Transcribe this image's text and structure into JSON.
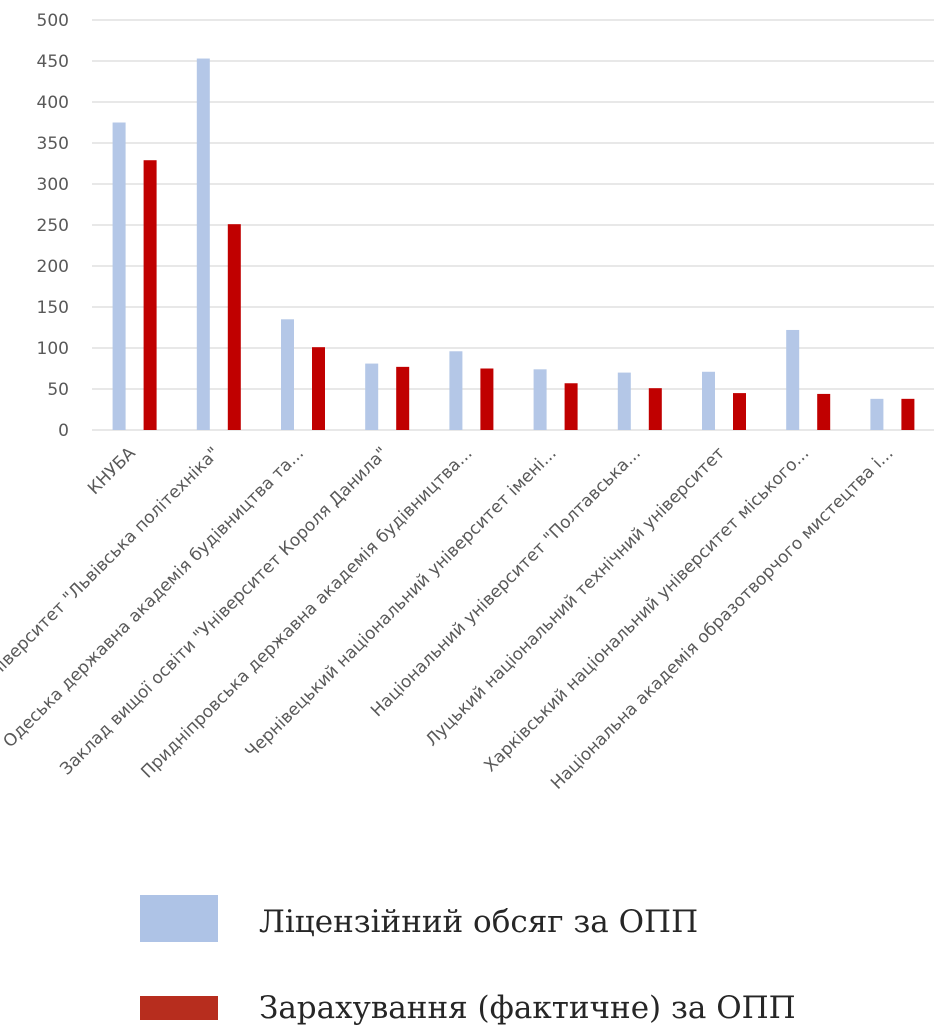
{
  "chart_data": {
    "type": "bar",
    "title": "",
    "xlabel": "",
    "ylabel": "",
    "ylim": [
      0,
      500
    ],
    "yticks": [
      0,
      50,
      100,
      150,
      200,
      250,
      300,
      350,
      400,
      450,
      500
    ],
    "grid": true,
    "legend_position": "bottom",
    "categories": [
      "КНУБА",
      "Національний університет \"Львівська політехніка\"",
      "Одеська державна академія будівництва та...",
      "Заклад вищої освіти \"Університет Короля Данила\"",
      "Придніпровська державна академія будівництва...",
      "Чернівецький національний університет імені...",
      "Національний університет \"Полтавська...",
      "Луцький національний технічний університет",
      "Харківський національний університет міського...",
      "Національна академія образотворчого мистецтва і..."
    ],
    "series": [
      {
        "name": "Ліцензійний обсяг за ОПП",
        "color": "#b4c7e7",
        "values": [
          375,
          453,
          135,
          81,
          96,
          74,
          70,
          71,
          122,
          38
        ]
      },
      {
        "name": "Зарахування (фактичне) за ОПП",
        "color": "#c00000",
        "values": [
          329,
          251,
          101,
          77,
          75,
          57,
          51,
          45,
          44,
          38
        ]
      }
    ]
  },
  "legend_swatch_colors": [
    "#aec3e6",
    "#b72d1e"
  ]
}
